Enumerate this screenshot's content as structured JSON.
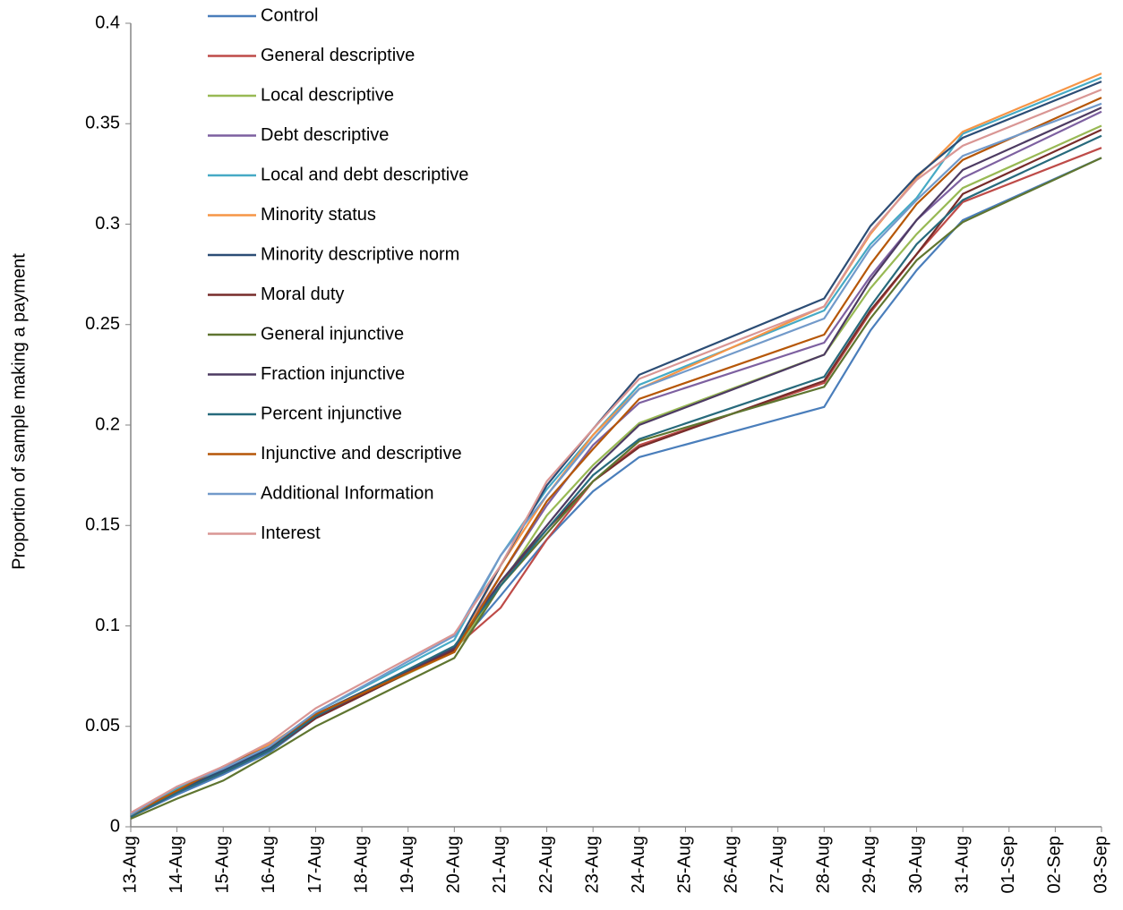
{
  "chart_data": {
    "type": "line",
    "y_label": "Proportion of sample making a payment",
    "x": [
      "13-Aug",
      "14-Aug",
      "15-Aug",
      "16-Aug",
      "17-Aug",
      "20-Aug",
      "21-Aug",
      "22-Aug",
      "23-Aug",
      "24-Aug",
      "28-Aug",
      "29-Aug",
      "30-Aug",
      "31-Aug",
      "03-Sep"
    ],
    "xticks": [
      "13-Aug",
      "14-Aug",
      "15-Aug",
      "16-Aug",
      "17-Aug",
      "18-Aug",
      "19-Aug",
      "20-Aug",
      "21-Aug",
      "22-Aug",
      "23-Aug",
      "24-Aug",
      "25-Aug",
      "26-Aug",
      "27-Aug",
      "28-Aug",
      "29-Aug",
      "30-Aug",
      "31-Aug",
      "01-Sep",
      "02-Sep",
      "03-Sep"
    ],
    "ylim": [
      0,
      0.4
    ],
    "yticks": [
      0,
      0.05,
      0.1,
      0.15,
      0.2,
      0.25,
      0.3,
      0.35,
      0.4
    ],
    "legend": "top-left",
    "series": [
      {
        "name": "Control",
        "color": "#4a7ebb",
        "values": [
          0.005,
          0.016,
          0.026,
          0.037,
          0.054,
          0.088,
          0.115,
          0.143,
          0.167,
          0.184,
          0.209,
          0.247,
          0.277,
          0.302,
          0.333
        ]
      },
      {
        "name": "General descriptive",
        "color": "#be4b48",
        "values": [
          0.005,
          0.017,
          0.028,
          0.039,
          0.056,
          0.089,
          0.109,
          0.143,
          0.172,
          0.19,
          0.221,
          0.256,
          0.285,
          0.311,
          0.338
        ]
      },
      {
        "name": "Local descriptive",
        "color": "#98b954",
        "values": [
          0.005,
          0.017,
          0.027,
          0.038,
          0.055,
          0.087,
          0.12,
          0.155,
          0.18,
          0.201,
          0.235,
          0.268,
          0.295,
          0.318,
          0.349
        ]
      },
      {
        "name": "Debt descriptive",
        "color": "#7d60a0",
        "values": [
          0.005,
          0.017,
          0.027,
          0.038,
          0.055,
          0.089,
          0.125,
          0.16,
          0.19,
          0.211,
          0.241,
          0.274,
          0.302,
          0.323,
          0.356
        ]
      },
      {
        "name": "Local and debt descriptive",
        "color": "#46aac5",
        "values": [
          0.006,
          0.019,
          0.029,
          0.04,
          0.057,
          0.093,
          0.135,
          0.168,
          0.195,
          0.22,
          0.257,
          0.29,
          0.313,
          0.345,
          0.373
        ]
      },
      {
        "name": "Minority status",
        "color": "#f69546",
        "values": [
          0.006,
          0.018,
          0.03,
          0.041,
          0.056,
          0.087,
          0.13,
          0.165,
          0.195,
          0.218,
          0.259,
          0.295,
          0.323,
          0.346,
          0.375
        ]
      },
      {
        "name": "Minority descriptive norm",
        "color": "#2c4d75",
        "values": [
          0.005,
          0.018,
          0.028,
          0.039,
          0.056,
          0.089,
          0.13,
          0.17,
          0.198,
          0.225,
          0.263,
          0.299,
          0.324,
          0.343,
          0.371
        ]
      },
      {
        "name": "Moral duty",
        "color": "#772c2a",
        "values": [
          0.005,
          0.017,
          0.027,
          0.038,
          0.054,
          0.088,
          0.122,
          0.148,
          0.172,
          0.189,
          0.222,
          0.257,
          0.285,
          0.315,
          0.347
        ]
      },
      {
        "name": "General injunctive",
        "color": "#5f7530",
        "values": [
          0.004,
          0.014,
          0.023,
          0.036,
          0.05,
          0.084,
          0.12,
          0.146,
          0.172,
          0.192,
          0.219,
          0.253,
          0.282,
          0.301,
          0.333
        ]
      },
      {
        "name": "Fraction injunctive",
        "color": "#4d3b62",
        "values": [
          0.005,
          0.017,
          0.027,
          0.038,
          0.055,
          0.089,
          0.122,
          0.15,
          0.178,
          0.2,
          0.235,
          0.272,
          0.302,
          0.327,
          0.358
        ]
      },
      {
        "name": "Percent injunctive",
        "color": "#276a7c",
        "values": [
          0.005,
          0.017,
          0.027,
          0.038,
          0.055,
          0.09,
          0.12,
          0.148,
          0.175,
          0.193,
          0.224,
          0.259,
          0.29,
          0.312,
          0.344
        ]
      },
      {
        "name": "Injunctive and descriptive",
        "color": "#b65708",
        "values": [
          0.006,
          0.018,
          0.03,
          0.04,
          0.056,
          0.087,
          0.125,
          0.162,
          0.188,
          0.213,
          0.245,
          0.28,
          0.31,
          0.332,
          0.363
        ]
      },
      {
        "name": "Additional Information",
        "color": "#729aca",
        "values": [
          0.006,
          0.02,
          0.029,
          0.04,
          0.057,
          0.095,
          0.135,
          0.165,
          0.193,
          0.218,
          0.253,
          0.288,
          0.312,
          0.334,
          0.36
        ]
      },
      {
        "name": "Interest",
        "color": "#d99694",
        "values": [
          0.007,
          0.02,
          0.03,
          0.042,
          0.059,
          0.096,
          0.13,
          0.172,
          0.198,
          0.223,
          0.259,
          0.296,
          0.322,
          0.339,
          0.367
        ]
      }
    ]
  }
}
